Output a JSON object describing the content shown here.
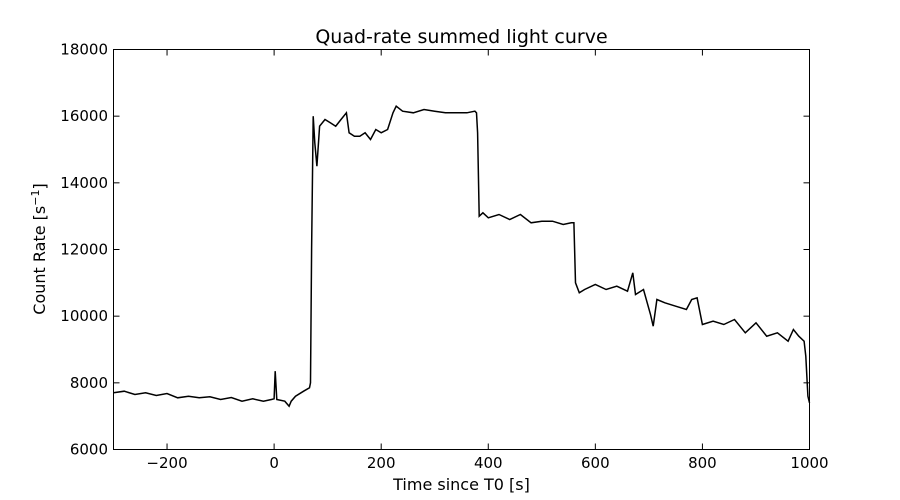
{
  "chart_data": {
    "type": "line",
    "title": "Quad-rate summed light curve",
    "xlabel": "Time since T0 [s]",
    "ylabel_main": "Count Rate [s",
    "ylabel_sup": "−1",
    "ylabel_end": "]",
    "xlim": [
      -300,
      1000
    ],
    "ylim": [
      6000,
      18000
    ],
    "xticks": [
      -200,
      0,
      200,
      400,
      600,
      800,
      1000
    ],
    "xtick_labels": [
      "−200",
      "0",
      "200",
      "400",
      "600",
      "800",
      "1000"
    ],
    "yticks": [
      6000,
      8000,
      10000,
      12000,
      14000,
      16000,
      18000
    ],
    "ytick_labels": [
      "6000",
      "8000",
      "10000",
      "12000",
      "14000",
      "16000",
      "18000"
    ],
    "series": [
      {
        "color": "#000000",
        "x": [
          -300,
          -280,
          -260,
          -240,
          -220,
          -200,
          -180,
          -160,
          -140,
          -120,
          -100,
          -80,
          -60,
          -40,
          -20,
          -5,
          0,
          2,
          5,
          20,
          28,
          32,
          40,
          55,
          66,
          68,
          70,
          73,
          76,
          80,
          85,
          95,
          105,
          115,
          125,
          135,
          140,
          150,
          160,
          170,
          180,
          190,
          200,
          212,
          222,
          228,
          240,
          260,
          280,
          300,
          320,
          340,
          360,
          375,
          378,
          380,
          383,
          390,
          400,
          420,
          440,
          460,
          480,
          500,
          520,
          540,
          555,
          560,
          563,
          570,
          580,
          600,
          620,
          640,
          660,
          670,
          675,
          690,
          703,
          708,
          715,
          730,
          750,
          770,
          780,
          790,
          800,
          820,
          840,
          860,
          880,
          900,
          920,
          940,
          960,
          970,
          980,
          990,
          993,
          997,
          1000
        ],
        "y": [
          7700,
          7750,
          7650,
          7700,
          7620,
          7680,
          7550,
          7600,
          7550,
          7580,
          7500,
          7560,
          7450,
          7520,
          7450,
          7500,
          7520,
          8350,
          7500,
          7450,
          7300,
          7450,
          7600,
          7750,
          7850,
          8000,
          12000,
          16000,
          15200,
          14500,
          15700,
          15900,
          15800,
          15700,
          15900,
          16100,
          15500,
          15400,
          15400,
          15500,
          15300,
          15600,
          15500,
          15600,
          16100,
          16300,
          16150,
          16100,
          16200,
          16150,
          16100,
          16100,
          16100,
          16150,
          16100,
          15500,
          13000,
          13100,
          12950,
          13050,
          12900,
          13050,
          12800,
          12850,
          12850,
          12750,
          12800,
          12800,
          11000,
          10700,
          10800,
          10950,
          10800,
          10900,
          10750,
          11300,
          10650,
          10800,
          10050,
          9700,
          10500,
          10400,
          10300,
          10200,
          10500,
          10550,
          9750,
          9850,
          9750,
          9900,
          9500,
          9800,
          9400,
          9500,
          9250,
          9600,
          9400,
          9250,
          8800,
          7600,
          7400
        ]
      }
    ],
    "grid": false,
    "legend": "none"
  }
}
